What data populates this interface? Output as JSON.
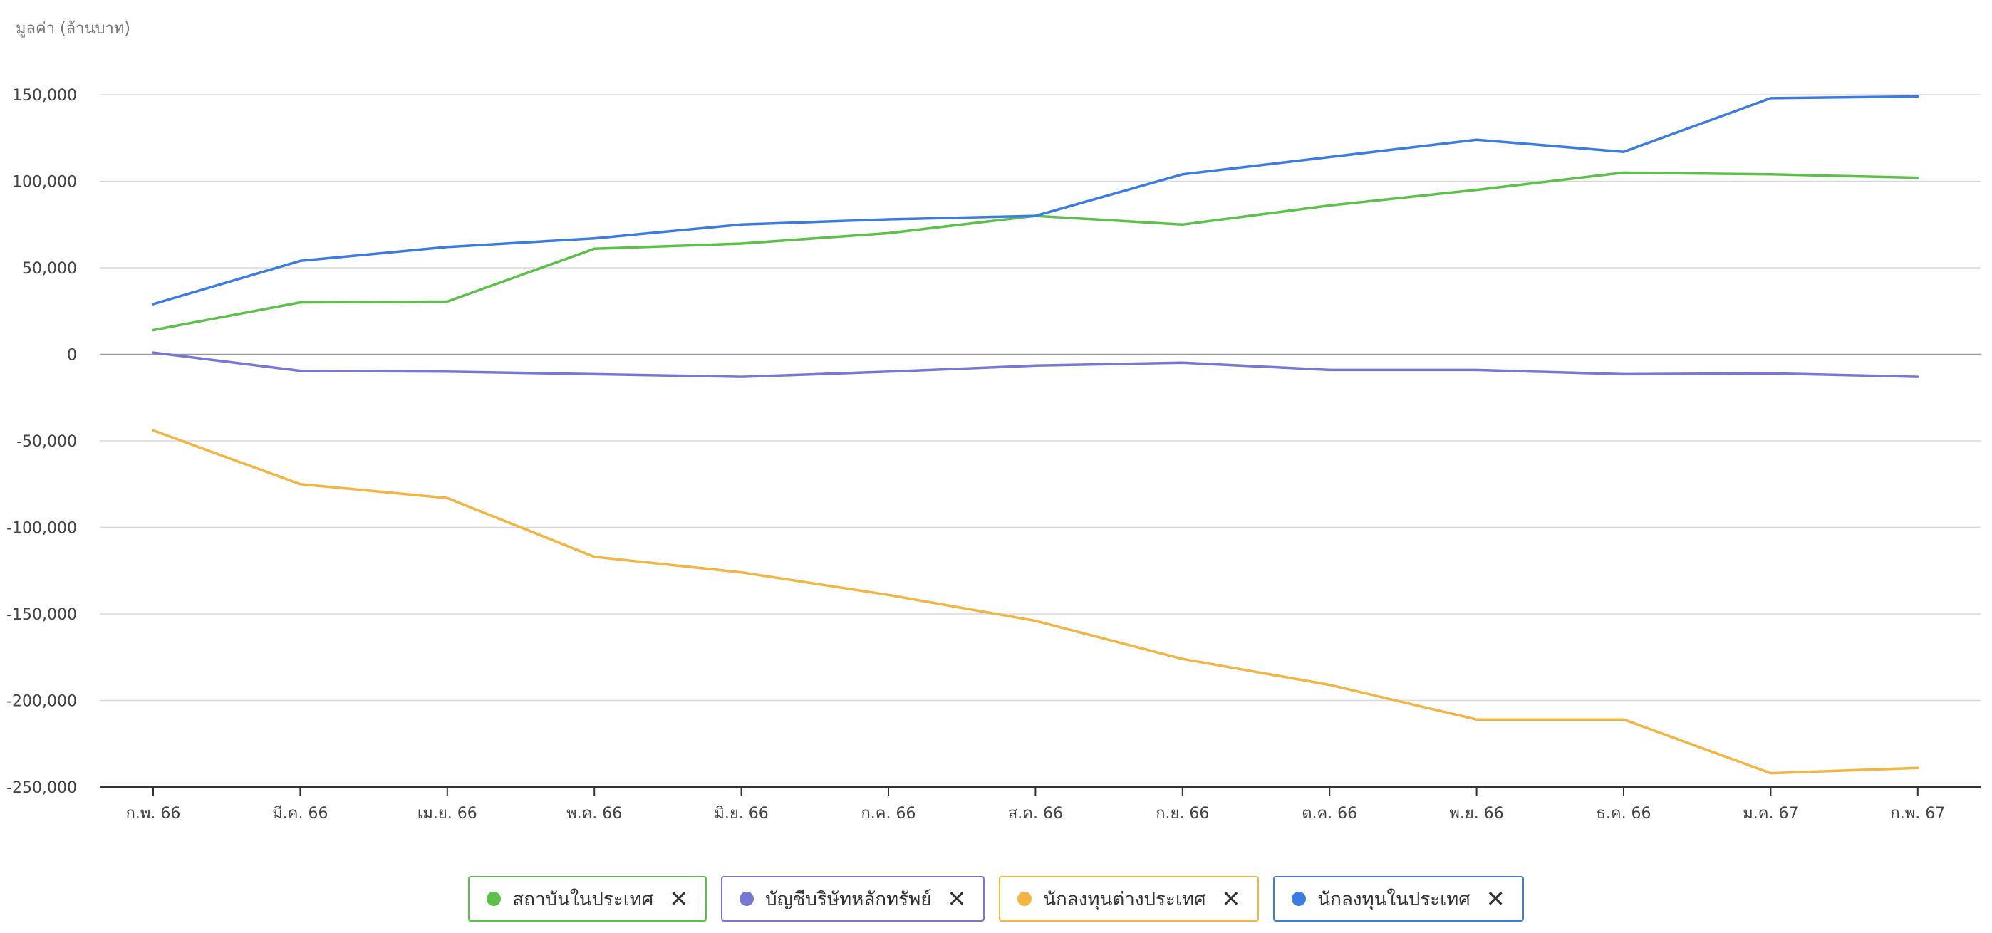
{
  "chart_data": {
    "type": "line",
    "ylabel": "มูลค่า (ล้านบาท)",
    "categories": [
      "ก.พ. 66",
      "มี.ค. 66",
      "เม.ย. 66",
      "พ.ค. 66",
      "มิ.ย. 66",
      "ก.ค. 66",
      "ส.ค. 66",
      "ก.ย. 66",
      "ต.ค. 66",
      "พ.ย. 66",
      "ธ.ค. 66",
      "ม.ค. 67",
      "ก.พ. 67"
    ],
    "ylim": [
      -250000,
      150000
    ],
    "yticks": [
      150000,
      100000,
      50000,
      0,
      -50000,
      -100000,
      -150000,
      -200000,
      -250000
    ],
    "ytick_labels": [
      "150,000",
      "100,000",
      "50,000",
      "0",
      "-50,000",
      "-100,000",
      "-150,000",
      "-200,000",
      "-250,000"
    ],
    "grid": true,
    "legend_position": "bottom",
    "series": [
      {
        "name": "สถาบันในประเทศ",
        "color": "#5cc14a",
        "values": [
          14000,
          30000,
          30500,
          61000,
          64000,
          70000,
          80000,
          75000,
          86000,
          95000,
          105000,
          104000,
          102000
        ]
      },
      {
        "name": "บัญชีบริษัทหลักทรัพย์",
        "color": "#7777d6",
        "values": [
          1000,
          -9500,
          -10000,
          -11500,
          -13000,
          -10000,
          -6500,
          -4800,
          -9000,
          -9000,
          -11500,
          -11000,
          -13000
        ]
      },
      {
        "name": "นักลงทุนต่างประเทศ",
        "color": "#f2b544",
        "values": [
          -44000,
          -75000,
          -83000,
          -117000,
          -126000,
          -139000,
          -154000,
          -176000,
          -191000,
          -211000,
          -211000,
          -242000,
          -239000
        ]
      },
      {
        "name": "นักลงทุนในประเทศ",
        "color": "#3b7ce3",
        "values": [
          29000,
          54000,
          62000,
          67000,
          75000,
          78000,
          80000,
          104000,
          114000,
          124000,
          117000,
          148000,
          149000
        ]
      }
    ]
  },
  "legend": {
    "close_symbol": "✕"
  }
}
